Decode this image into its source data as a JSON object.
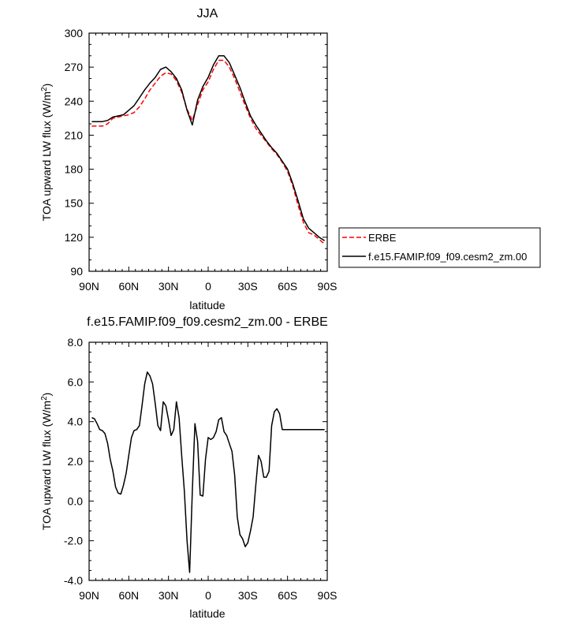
{
  "chart_data": [
    {
      "type": "line",
      "title": "JJA",
      "xlabel": "latitude",
      "ylabel": "TOA upward LW flux (W/m",
      "ylabel_sup": "2",
      "ylabel_close": ")",
      "xlim": [
        90,
        -90
      ],
      "ylim": [
        90,
        300
      ],
      "xtick_values": [
        90,
        60,
        30,
        0,
        -30,
        -60,
        -90
      ],
      "xtick_labels": [
        "90N",
        "60N",
        "30N",
        "0",
        "30S",
        "60S",
        "90S"
      ],
      "ytick_values": [
        90,
        120,
        150,
        180,
        210,
        240,
        270,
        300
      ],
      "ytick_labels": [
        "90",
        "120",
        "150",
        "180",
        "210",
        "240",
        "270",
        "300"
      ],
      "legend_position": "right",
      "colors": {
        "ERBE": "#ff0000",
        "model": "#000000"
      },
      "series": [
        {
          "name": "ERBE",
          "style": "dashed",
          "x": [
            88,
            84,
            80,
            76,
            72,
            68,
            64,
            60,
            56,
            52,
            48,
            44,
            40,
            36,
            32,
            28,
            24,
            20,
            16,
            12,
            8,
            4,
            0,
            -4,
            -8,
            -12,
            -16,
            -20,
            -24,
            -28,
            -32,
            -36,
            -40,
            -44,
            -48,
            -52,
            -56,
            -60,
            -64,
            -68,
            -72,
            -76,
            -80,
            -84,
            -88
          ],
          "y": [
            218,
            218,
            218,
            220,
            225,
            226,
            227,
            228,
            230,
            235,
            242,
            250,
            256,
            262,
            265,
            264,
            258,
            248,
            233,
            223,
            237,
            250,
            257,
            268,
            276,
            276,
            270,
            260,
            248,
            236,
            225,
            216,
            210,
            204,
            198,
            193,
            186,
            178,
            165,
            148,
            133,
            124,
            122,
            118,
            114
          ]
        },
        {
          "name": "f.e15.FAMIP.f09_f09.cesm2_zm.00",
          "style": "solid",
          "x": [
            88,
            84,
            80,
            76,
            72,
            68,
            64,
            60,
            56,
            52,
            48,
            44,
            40,
            36,
            32,
            28,
            24,
            20,
            16,
            12,
            8,
            4,
            0,
            -4,
            -8,
            -12,
            -16,
            -20,
            -24,
            -28,
            -32,
            -36,
            -40,
            -44,
            -48,
            -52,
            -56,
            -60,
            -64,
            -68,
            -72,
            -76,
            -80,
            -84,
            -88
          ],
          "y": [
            222,
            222,
            222,
            223,
            226,
            227,
            228,
            232,
            236,
            243,
            250,
            256,
            261,
            268,
            270,
            266,
            260,
            250,
            232,
            219,
            241,
            253,
            261,
            272,
            280,
            280,
            274,
            263,
            252,
            239,
            227,
            219,
            212,
            205,
            199,
            194,
            187,
            180,
            167,
            152,
            136,
            128,
            124,
            120,
            117
          ]
        }
      ]
    },
    {
      "type": "line",
      "title": "f.e15.FAMIP.f09_f09.cesm2_zm.00 - ERBE",
      "xlabel": "latitude",
      "ylabel": "TOA upward LW flux (W/m",
      "ylabel_sup": "2",
      "ylabel_close": ")",
      "xlim": [
        90,
        -90
      ],
      "ylim": [
        -4,
        8
      ],
      "xtick_values": [
        90,
        60,
        30,
        0,
        -30,
        -60,
        -90
      ],
      "xtick_labels": [
        "90N",
        "60N",
        "30N",
        "0",
        "30S",
        "60S",
        "90S"
      ],
      "ytick_values": [
        -4,
        -2,
        0,
        2,
        4,
        6,
        8
      ],
      "ytick_labels": [
        "-4.0",
        "-2.0",
        "0.0",
        "2.0",
        "4.0",
        "6.0",
        "8.0"
      ],
      "colors": {
        "line": "#000000"
      },
      "series": [
        {
          "x": [
            88,
            86,
            84,
            82,
            80,
            78,
            76,
            74,
            72,
            70,
            68,
            66,
            64,
            62,
            60,
            58,
            56,
            54,
            52,
            50,
            48,
            46,
            44,
            42,
            40,
            38,
            36,
            34,
            32,
            30,
            28,
            26,
            24,
            22,
            20,
            18,
            16,
            14,
            12,
            10,
            8,
            6,
            4,
            2,
            0,
            -2,
            -4,
            -6,
            -8,
            -10,
            -12,
            -14,
            -16,
            -18,
            -20,
            -22,
            -24,
            -26,
            -28,
            -30,
            -32,
            -34,
            -36,
            -38,
            -40,
            -42,
            -44,
            -46,
            -48,
            -50,
            -52,
            -54,
            -56,
            -58,
            -60,
            -62,
            -64,
            -66,
            -68,
            -70,
            -72,
            -74,
            -76,
            -78,
            -80,
            -82,
            -84,
            -86,
            -88
          ],
          "y": [
            4.2,
            4.15,
            3.9,
            3.6,
            3.55,
            3.4,
            2.9,
            2.1,
            1.5,
            0.7,
            0.4,
            0.35,
            0.8,
            1.4,
            2.3,
            3.2,
            3.55,
            3.6,
            3.8,
            4.8,
            5.9,
            6.5,
            6.3,
            5.9,
            4.9,
            3.8,
            3.55,
            5.0,
            4.8,
            4.1,
            3.3,
            3.6,
            5.0,
            4.2,
            2.3,
            0.5,
            -2.0,
            -3.6,
            0.5,
            3.9,
            3.0,
            0.3,
            0.25,
            2.1,
            3.2,
            3.1,
            3.2,
            3.5,
            4.1,
            4.2,
            3.5,
            3.3,
            2.9,
            2.5,
            1.3,
            -0.8,
            -1.7,
            -1.9,
            -2.3,
            -2.1,
            -1.5,
            -0.8,
            0.8,
            2.3,
            2.0,
            1.2,
            1.2,
            1.5,
            3.8,
            4.5,
            4.65,
            4.4,
            3.6,
            3.6,
            3.6,
            3.6,
            3.6,
            3.6,
            3.6,
            3.6,
            3.6,
            3.6,
            3.6,
            3.6,
            3.6,
            3.6,
            3.6,
            3.6,
            3.6
          ]
        }
      ]
    }
  ]
}
